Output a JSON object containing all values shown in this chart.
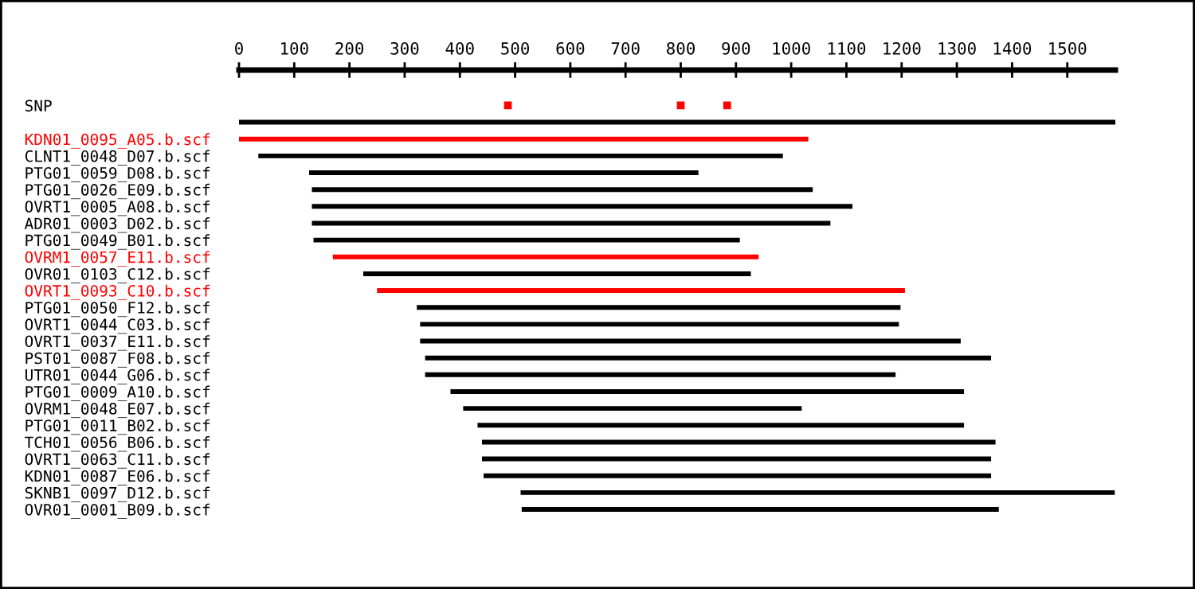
{
  "chart_data": {
    "type": "bar",
    "orientation": "horizontal",
    "categories": [
      "SNP",
      null,
      "KDN01_0095_A05.b.scf",
      "CLNT1_0048_D07.b.scf",
      "PTG01_0059_D08.b.scf",
      "PTG01_0026_E09.b.scf",
      "OVRT1_0005_A08.b.scf",
      "ADR01_0003_D02.b.scf",
      "PTG01_0049_B01.b.scf",
      "OVRM1_0057_E11.b.scf",
      "OVR01_0103_C12.b.scf",
      "OVRT1_0093_C10.b.scf",
      "PTG01_0050_F12.b.scf",
      "OVRT1_0044_C03.b.scf",
      "OVRT1_0037_E11.b.scf",
      "PST01_0087_F08.b.scf",
      "UTR01_0044_G06.b.scf",
      "PTG01_0009_A10.b.scf",
      "OVRM1_0048_E07.b.scf",
      "PTG01_0011_B02.b.scf",
      "TCH01_0056_B06.b.scf",
      "OVRT1_0063_C11.b.scf",
      "KDN01_0087_E06.b.scf",
      "SKNB1_0097_D12.b.scf",
      "OVR01_0001_B09.b.scf"
    ],
    "series": [
      {
        "base": [
          null,
          0,
          0,
          35,
          127,
          132,
          132,
          132,
          135,
          170,
          225,
          250,
          322,
          328,
          328,
          337,
          337,
          383,
          406,
          432,
          440,
          440,
          443,
          510,
          512
        ],
        "values": [
          null,
          1587,
          1031,
          950,
          705,
          907,
          979,
          939,
          772,
          771,
          702,
          956,
          876,
          867,
          979,
          1025,
          852,
          930,
          613,
          881,
          930,
          922,
          919,
          1076,
          864
        ],
        "colors": [
          "#000000",
          "#000000",
          "#ff0000",
          "#000000",
          "#000000",
          "#000000",
          "#000000",
          "#000000",
          "#000000",
          "#ff0000",
          "#000000",
          "#ff0000",
          "#000000",
          "#000000",
          "#000000",
          "#000000",
          "#000000",
          "#000000",
          "#000000",
          "#000000",
          "#000000",
          "#000000",
          "#000000",
          "#000000",
          "#000000"
        ]
      },
      {
        "type": "scatter",
        "values": [
          487,
          null,
          null,
          null,
          null,
          null,
          null,
          null,
          null,
          null,
          null,
          null,
          null,
          null,
          null,
          null,
          null,
          null,
          null,
          null,
          null,
          null,
          null,
          null,
          null
        ],
        "color": "#ff0000",
        "marker": "square"
      },
      {
        "type": "scatter",
        "values": [
          800,
          null,
          null,
          null,
          null,
          null,
          null,
          null,
          null,
          null,
          null,
          null,
          null,
          null,
          null,
          null,
          null,
          null,
          null,
          null,
          null,
          null,
          null,
          null,
          null
        ],
        "color": "#ff0000",
        "marker": "square"
      },
      {
        "type": "scatter",
        "values": [
          884,
          null,
          null,
          null,
          null,
          null,
          null,
          null,
          null,
          null,
          null,
          null,
          null,
          null,
          null,
          null,
          null,
          null,
          null,
          null,
          null,
          null,
          null,
          null,
          null
        ],
        "color": "#ff0000",
        "marker": "square"
      }
    ],
    "xlim": [
      0,
      1587
    ],
    "xticks": [
      0,
      100,
      200,
      300,
      400,
      500,
      600,
      700,
      800,
      900,
      1000,
      1100,
      1200,
      1300,
      1400,
      1500
    ],
    "grid": false,
    "legend": false
  }
}
